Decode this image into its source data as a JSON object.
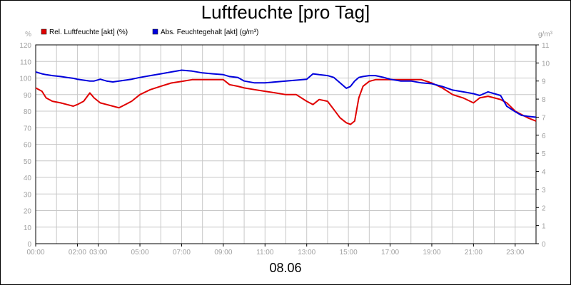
{
  "title": "Luftfeuchte [pro Tag]",
  "date_label": "08.06",
  "chart_data": {
    "type": "line",
    "title": "Luftfeuchte [pro Tag]",
    "xlabel": "08.06",
    "x_tick_labels": [
      "00:00",
      "02:00",
      "03:00",
      "05:00",
      "07:00",
      "09:00",
      "11:00",
      "13:00",
      "15:00",
      "17:00",
      "19:00",
      "21:00",
      "23:00"
    ],
    "x_tick_hours": [
      0,
      2,
      3,
      5,
      7,
      9,
      11,
      13,
      15,
      17,
      19,
      21,
      23
    ],
    "x_range_hours": [
      0,
      24
    ],
    "grid": true,
    "legend_placement": "top-left",
    "y_left": {
      "unit": "%",
      "range": [
        0,
        120
      ],
      "step": 10
    },
    "y_right": {
      "unit": "g/m³",
      "range": [
        0,
        11
      ],
      "step": 1
    },
    "series": [
      {
        "name": "Rel. Luftfeuchte [akt] (%)",
        "axis": "left",
        "color": "#e00000",
        "hours": [
          0,
          0.3,
          0.5,
          0.8,
          1.2,
          1.5,
          1.8,
          2.0,
          2.3,
          2.6,
          2.8,
          3.1,
          3.4,
          3.7,
          4.0,
          4.3,
          4.6,
          5.0,
          5.5,
          6.0,
          6.5,
          7.0,
          7.5,
          8.0,
          8.5,
          9.0,
          9.3,
          9.7,
          10.0,
          10.5,
          11.0,
          11.5,
          12.0,
          12.5,
          13.0,
          13.3,
          13.6,
          14.0,
          14.3,
          14.6,
          14.9,
          15.1,
          15.3,
          15.5,
          15.7,
          16.0,
          16.3,
          16.7,
          17.0,
          17.5,
          18.0,
          18.5,
          19.0,
          19.5,
          20.0,
          20.5,
          21.0,
          21.3,
          21.7,
          22.0,
          22.3,
          22.6,
          23.0,
          23.3,
          23.6,
          24.0
        ],
        "values": [
          94,
          92,
          88,
          86,
          85,
          84,
          83,
          84,
          86,
          91,
          88,
          85,
          84,
          83,
          82,
          84,
          86,
          90,
          93,
          95,
          97,
          98,
          99,
          99,
          99,
          99,
          96,
          95,
          94,
          93,
          92,
          91,
          90,
          90,
          86,
          84,
          87,
          86,
          81,
          76,
          73,
          72,
          74,
          88,
          95,
          98,
          99,
          99,
          99,
          99,
          99,
          99,
          97,
          94,
          90,
          88,
          85,
          88,
          89,
          88,
          87,
          85,
          80,
          78,
          76,
          74
        ]
      },
      {
        "name": "Abs. Feuchtegehalt [akt] (g/m³)",
        "axis": "right",
        "color": "#0000dd",
        "hours": [
          0,
          0.3,
          0.5,
          0.8,
          1.2,
          1.5,
          1.8,
          2.0,
          2.3,
          2.6,
          2.8,
          3.1,
          3.4,
          3.7,
          4.0,
          4.3,
          4.6,
          5.0,
          5.5,
          6.0,
          6.5,
          7.0,
          7.5,
          8.0,
          8.5,
          9.0,
          9.3,
          9.7,
          10.0,
          10.5,
          11.0,
          11.5,
          12.0,
          12.5,
          13.0,
          13.3,
          13.6,
          14.0,
          14.3,
          14.6,
          14.9,
          15.1,
          15.3,
          15.5,
          15.7,
          16.0,
          16.3,
          16.7,
          17.0,
          17.5,
          18.0,
          18.5,
          19.0,
          19.5,
          20.0,
          20.5,
          21.0,
          21.3,
          21.7,
          22.0,
          22.3,
          22.6,
          23.0,
          23.3,
          23.6,
          24.0
        ],
        "values": [
          9.5,
          9.4,
          9.35,
          9.3,
          9.25,
          9.2,
          9.15,
          9.1,
          9.05,
          9.0,
          9.0,
          9.1,
          9.0,
          8.95,
          9.0,
          9.05,
          9.1,
          9.2,
          9.3,
          9.4,
          9.5,
          9.6,
          9.55,
          9.45,
          9.4,
          9.35,
          9.25,
          9.2,
          9.0,
          8.9,
          8.9,
          8.95,
          9.0,
          9.05,
          9.1,
          9.4,
          9.35,
          9.3,
          9.2,
          8.9,
          8.6,
          8.7,
          9.0,
          9.2,
          9.25,
          9.3,
          9.3,
          9.2,
          9.1,
          9.0,
          9.0,
          8.9,
          8.85,
          8.7,
          8.5,
          8.4,
          8.3,
          8.2,
          8.4,
          8.3,
          8.2,
          7.6,
          7.3,
          7.1,
          7.05,
          7.0
        ]
      }
    ]
  }
}
